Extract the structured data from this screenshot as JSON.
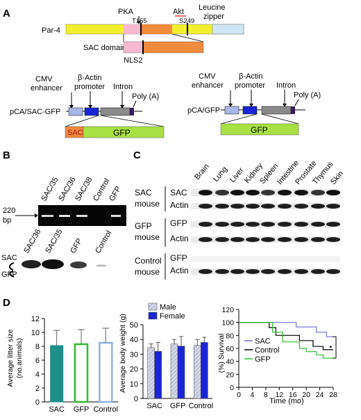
{
  "panels": {
    "a": "A",
    "b": "B",
    "c": "C",
    "d": "D"
  },
  "panel_a": {
    "protein": "Par-4",
    "pka": "PKA",
    "t155": "T155",
    "akt": "Akt",
    "s249": "S249",
    "leucine_line1": "Leucine",
    "leucine_line2": "zipper",
    "sac_domain": "SAC domain",
    "nls2": "NLS2",
    "cmv_line1": "CMV",
    "cmv_line2": "enhancer",
    "bactin_line1": "β-Actin",
    "bactin_line2": "promoter",
    "intron": "Intron",
    "polya": "Poly (A)",
    "construct_sac": "pCA/SAC-GFP",
    "construct_gfp": "pCA/GFP",
    "sac_box": "SAC",
    "gfp_box": "GFP",
    "colors": {
      "par4": "#f2ef2e",
      "sac": "#f08a3c",
      "sac_light": "#f6b9cf",
      "zipper": "#cfe6f5",
      "cmv": "#a9b7ea",
      "bactin": "#1a26d6",
      "intron": "#8a8a8a",
      "polya": "#3a1a5a",
      "gfp": "#a9e043"
    }
  },
  "panel_b": {
    "lanes_top": [
      "SAC/35",
      "SAC/36",
      "SAC/38",
      "Control",
      "GFP"
    ],
    "marker_line1": "220",
    "marker_line2": "bp",
    "lanes_bottom": [
      "SAC/36",
      "SAC/35",
      "GFP",
      "Control"
    ],
    "sac": "SAC",
    "gfp": "GFP"
  },
  "panel_c": {
    "tissues": [
      "Brain",
      "Lung",
      "Liver",
      "Kidney",
      "Spleen",
      "Intestine",
      "Prostate",
      "Thymus",
      "Skin"
    ],
    "groups": [
      {
        "line1": "SAC",
        "line2": "mouse",
        "rows": [
          "SAC",
          "Actin"
        ]
      },
      {
        "line1": "GFP",
        "line2": "mouse",
        "rows": [
          "GFP",
          "Actin"
        ]
      },
      {
        "line1": "Control",
        "line2": "mouse",
        "rows": [
          "GFP",
          "Actin"
        ]
      }
    ]
  },
  "chart_data": [
    {
      "type": "bar",
      "ylabel_line1": "Average litter size",
      "ylabel_line2": "(no.animals)",
      "categories": [
        "SAC",
        "GFP",
        "Control"
      ],
      "values": [
        8.1,
        8.3,
        8.5
      ],
      "errors": [
        2.2,
        2.1,
        2.1
      ],
      "ylim": [
        0,
        12
      ],
      "yticks": [
        "0",
        "2",
        "4",
        "6",
        "8",
        "10",
        "12"
      ],
      "colors": [
        "#1f8f8a",
        "#2fbf2f",
        "#8fb1ea"
      ]
    },
    {
      "type": "bar",
      "ylabel": "Average body weight (g)",
      "categories": [
        "SAC",
        "GFP",
        "Control"
      ],
      "series": [
        {
          "name": "Male",
          "values": [
            34.5,
            37.0,
            36.0
          ],
          "errors": [
            2.5,
            3.0,
            4.0
          ]
        },
        {
          "name": "Female",
          "values": [
            32.0,
            35.5,
            38.0
          ],
          "errors": [
            6.0,
            6.5,
            3.5
          ]
        }
      ],
      "ylim": [
        0,
        50
      ],
      "yticks": [
        "0",
        "10",
        "20",
        "30",
        "40",
        "50"
      ],
      "legend": "top"
    },
    {
      "type": "line",
      "ylabel": "(%) Survival",
      "xlabel": "Time (mo)",
      "xlim": [
        0,
        28
      ],
      "ylim": [
        0,
        120
      ],
      "xticks": [
        "0",
        "4",
        "8",
        "12",
        "16",
        "20",
        "24",
        "28"
      ],
      "yticks": [
        "0",
        "20",
        "40",
        "60",
        "80",
        "100",
        "120"
      ],
      "series": [
        {
          "name": "SAC",
          "color": "#6f6fdc",
          "points": [
            [
              0,
              100
            ],
            [
              17,
              100
            ],
            [
              17,
              93
            ],
            [
              23,
              93
            ],
            [
              23,
              85
            ],
            [
              26,
              85
            ],
            [
              26,
              78
            ],
            [
              28,
              78
            ]
          ]
        },
        {
          "name": "Control",
          "color": "#000000",
          "points": [
            [
              0,
              100
            ],
            [
              9,
              100
            ],
            [
              9,
              92
            ],
            [
              11,
              92
            ],
            [
              11,
              80
            ],
            [
              18,
              80
            ],
            [
              18,
              72
            ],
            [
              22,
              72
            ],
            [
              22,
              63
            ],
            [
              25,
              63
            ],
            [
              25,
              58
            ],
            [
              28,
              58
            ]
          ]
        },
        {
          "name": "GFP",
          "color": "#2fbf2f",
          "points": [
            [
              0,
              100
            ],
            [
              10,
              100
            ],
            [
              10,
              85
            ],
            [
              13,
              85
            ],
            [
              13,
              70
            ],
            [
              18,
              70
            ],
            [
              18,
              60
            ],
            [
              20,
              60
            ],
            [
              20,
              55
            ],
            [
              23,
              55
            ],
            [
              23,
              50
            ],
            [
              25,
              50
            ],
            [
              25,
              45
            ],
            [
              28,
              45
            ]
          ]
        }
      ],
      "annotation": "*",
      "legend": "center-left"
    }
  ]
}
